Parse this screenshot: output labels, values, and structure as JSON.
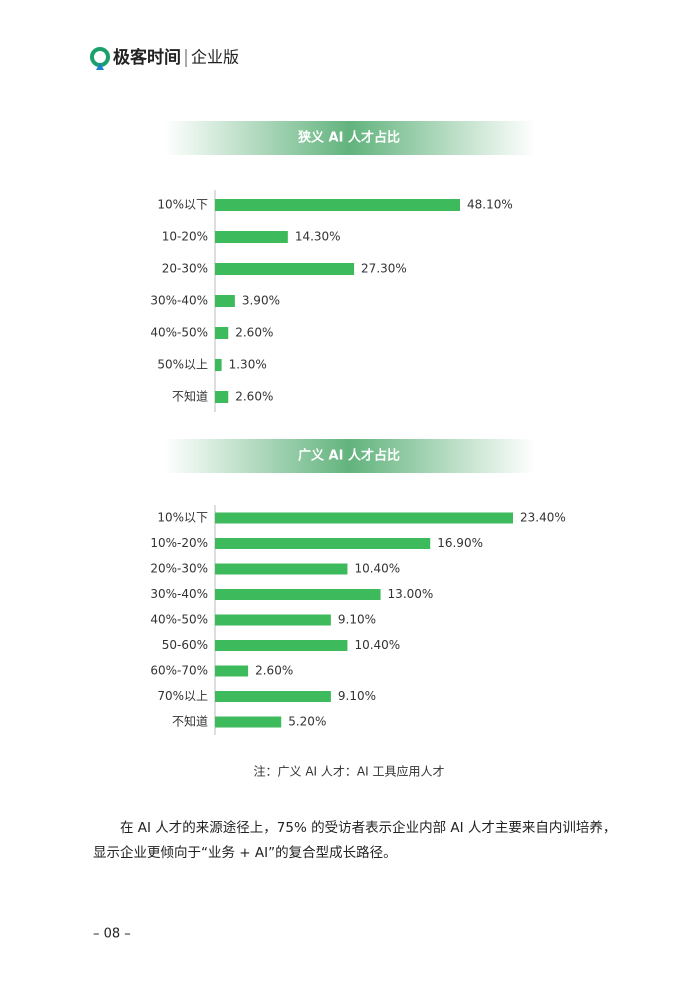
{
  "header": {
    "brand": "极客时间",
    "edition": "企业版"
  },
  "chart_data": [
    {
      "type": "bar",
      "orientation": "horizontal",
      "title": "狭义 AI 人才占比",
      "color": "#3dba5c",
      "categories": [
        "10%以下",
        "10-20%",
        "20-30%",
        "30%-40%",
        "40%-50%",
        "50%以上",
        "不知道"
      ],
      "values": [
        48.1,
        14.3,
        27.3,
        3.9,
        2.6,
        1.3,
        2.6
      ],
      "value_labels": [
        "48.10%",
        "14.30%",
        "27.30%",
        "3.90%",
        "2.60%",
        "1.30%",
        "2.60%"
      ]
    },
    {
      "type": "bar",
      "orientation": "horizontal",
      "title": "广义 AI 人才占比",
      "color": "#3dba5c",
      "categories": [
        "10%以下",
        "10%-20%",
        "20%-30%",
        "30%-40%",
        "40%-50%",
        "50-60%",
        "60%-70%",
        "70%以上",
        "不知道"
      ],
      "values": [
        23.4,
        16.9,
        10.4,
        13.0,
        9.1,
        10.4,
        2.6,
        9.1,
        5.2
      ],
      "value_labels": [
        "23.40%",
        "16.90%",
        "10.40%",
        "13.00%",
        "9.10%",
        "10.40%",
        "2.60%",
        "9.10%",
        "5.20%"
      ]
    }
  ],
  "note": "注：广义 AI 人才：AI 工具应用人才",
  "paragraph": [
    "在 AI 人才的来源途径上，75% 的受访者表示企业内部 AI 人才主要来自内训培养，",
    "显示企业更倾向于“业务 + AI”的复合型成长路径。"
  ],
  "page_number": "– 08 –"
}
